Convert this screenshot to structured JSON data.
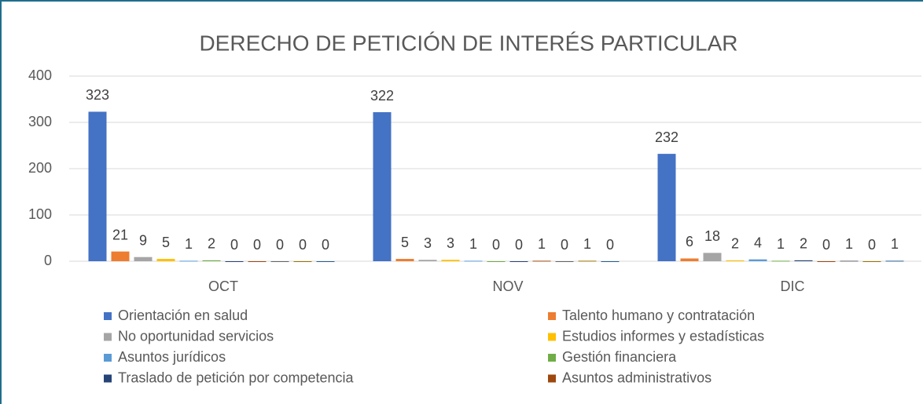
{
  "chart_data": {
    "type": "bar",
    "title": "DERECHO DE PETICIÓN DE INTERÉS PARTICULAR",
    "categories": [
      "OCT",
      "NOV",
      "DIC"
    ],
    "series": [
      {
        "name": "Orientación en salud",
        "color": "#4472c4",
        "values": [
          323,
          322,
          232
        ]
      },
      {
        "name": "Talento humano y contratación",
        "color": "#ed7d31",
        "values": [
          21,
          5,
          6
        ]
      },
      {
        "name": "No oportunidad servicios",
        "color": "#a5a5a5",
        "values": [
          9,
          3,
          18
        ]
      },
      {
        "name": "Estudios informes y estadísticas",
        "color": "#ffc000",
        "values": [
          5,
          3,
          2
        ]
      },
      {
        "name": "Asuntos jurídicos",
        "color": "#5b9bd5",
        "values": [
          1,
          1,
          4
        ]
      },
      {
        "name": "Gestión financiera",
        "color": "#70ad47",
        "values": [
          2,
          0,
          1
        ]
      },
      {
        "name": "Traslado de petición por competencia",
        "color": "#264478",
        "values": [
          0,
          0,
          2
        ]
      },
      {
        "name": "Asuntos administrativos",
        "color": "#9e480e",
        "values": [
          0,
          1,
          0
        ]
      },
      {
        "color": "#636363",
        "values": [
          0,
          0,
          1
        ]
      },
      {
        "color": "#997300",
        "values": [
          0,
          1,
          0
        ]
      },
      {
        "color": "#255e91",
        "values": [
          0,
          0,
          1
        ]
      }
    ],
    "ylim": [
      0,
      400
    ],
    "yticks": [
      0,
      100,
      200,
      300,
      400
    ],
    "grid": true
  }
}
